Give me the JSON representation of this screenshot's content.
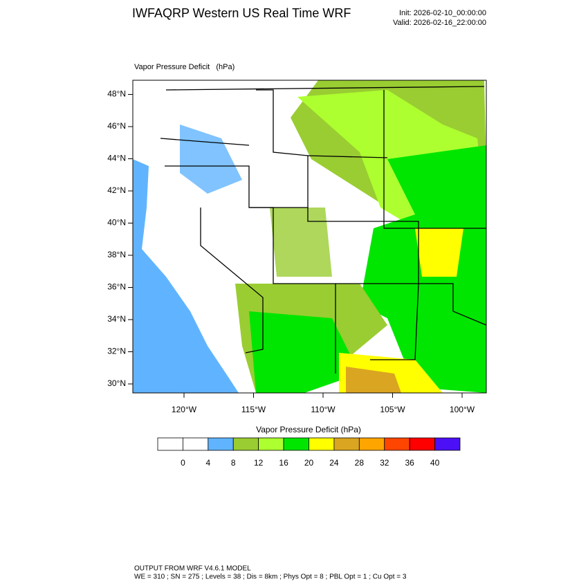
{
  "header": {
    "title": "IWFAQRP Western US Real Time WRF",
    "init": "Init: 2026-02-10_00:00:00",
    "valid": "Valid: 2026-02-16_22:00:00"
  },
  "map": {
    "title": "Vapor Pressure Deficit   (hPa)",
    "lat_labels": [
      "30°N",
      "32°N",
      "34°N",
      "36°N",
      "38°N",
      "40°N",
      "42°N",
      "44°N",
      "46°N",
      "48°N"
    ],
    "lon_labels": [
      "120°W",
      "115°W",
      "110°W",
      "105°W",
      "100°W"
    ]
  },
  "colorbar": {
    "title": "Vapor Pressure Deficit  (hPa)",
    "colors": [
      "#ffffff",
      "#ffffff",
      "#60b4ff",
      "#9acd32",
      "#adff2f",
      "#00e600",
      "#ffff00",
      "#daa520",
      "#ffa500",
      "#ff4500",
      "#ff0000",
      "#4b10f5"
    ],
    "levels": [
      0,
      4,
      8,
      12,
      16,
      20,
      24,
      28,
      32,
      36,
      40
    ]
  },
  "footer": {
    "line1": "OUTPUT FROM WRF V4.6.1 MODEL",
    "line2": "WE = 310 ; SN = 275 ; Levels = 38 ; Dis = 8km ; Phys Opt = 8 ; PBL Opt = 1 ; Cu Opt = 3"
  }
}
